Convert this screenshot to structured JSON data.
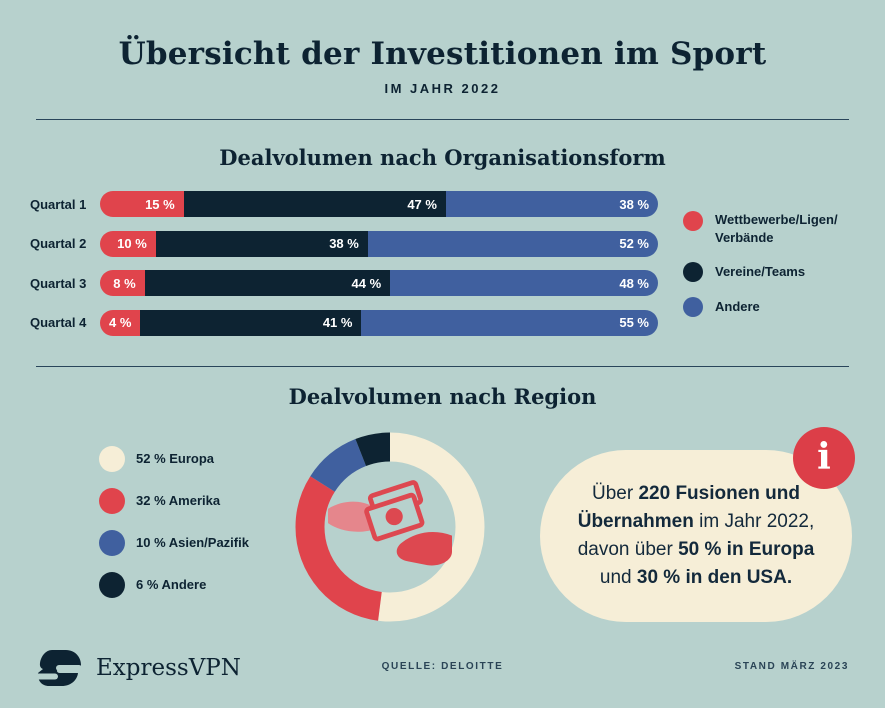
{
  "page": {
    "title": "Übersicht der Investitionen im Sport",
    "subtitle": "IM JAHR 2022"
  },
  "colors": {
    "background": "#b7d1cd",
    "navy": "#0d2332",
    "red": "#e0444c",
    "blue": "#40609f",
    "cream": "#f6eed7"
  },
  "chart_data": [
    {
      "type": "bar",
      "title": "Dealvolumen nach Organisationsform",
      "orientation": "horizontal",
      "stacked": true,
      "unit": "percent",
      "value_suffix": " %",
      "categories": [
        "Quartal 1",
        "Quartal 2",
        "Quartal 3",
        "Quartal 4"
      ],
      "series": [
        {
          "name": "Wettbewerbe/Ligen/Verbände",
          "color": "#e0444c",
          "values": [
            15,
            10,
            8,
            4
          ]
        },
        {
          "name": "Vereine/Teams",
          "color": "#0d2332",
          "values": [
            47,
            38,
            44,
            41
          ]
        },
        {
          "name": "Andere",
          "color": "#40609f",
          "values": [
            38,
            52,
            48,
            55
          ]
        }
      ],
      "legend": [
        "Wettbewerbe/Ligen/\nVerbände",
        "Vereine/Teams",
        "Andere"
      ],
      "legend_position": "right",
      "xlim": [
        0,
        100
      ],
      "grid": false
    },
    {
      "type": "pie",
      "title": "Dealvolumen nach Region",
      "donut": true,
      "labels": [
        "Europa",
        "Amerika",
        "Asien/Pazifik",
        "Andere"
      ],
      "values": [
        52,
        32,
        10,
        6
      ],
      "colors": [
        "#f6eed7",
        "#e0444c",
        "#40609f",
        "#0d2332"
      ],
      "legend_position": "left",
      "start_angle_deg": -90,
      "direction": "clockwise",
      "center_icon": "hand-giving-money-icon"
    }
  ],
  "infobox": {
    "icon_glyph": "i",
    "lines": [
      [
        {
          "t": "Über ",
          "b": false
        },
        {
          "t": "220 Fusionen und",
          "b": true
        }
      ],
      [
        {
          "t": "Übernahmen",
          "b": true
        },
        {
          "t": " im Jahr 2022,",
          "b": false
        }
      ],
      [
        {
          "t": "davon über ",
          "b": false
        },
        {
          "t": "50 % in Europa",
          "b": true
        }
      ],
      [
        {
          "t": "und ",
          "b": false
        },
        {
          "t": "30 % in den USA.",
          "b": true
        }
      ]
    ]
  },
  "footer": {
    "brand": "ExpressVPN",
    "source": "QUELLE: DELOITTE",
    "date": "STAND MÄRZ 2023"
  }
}
